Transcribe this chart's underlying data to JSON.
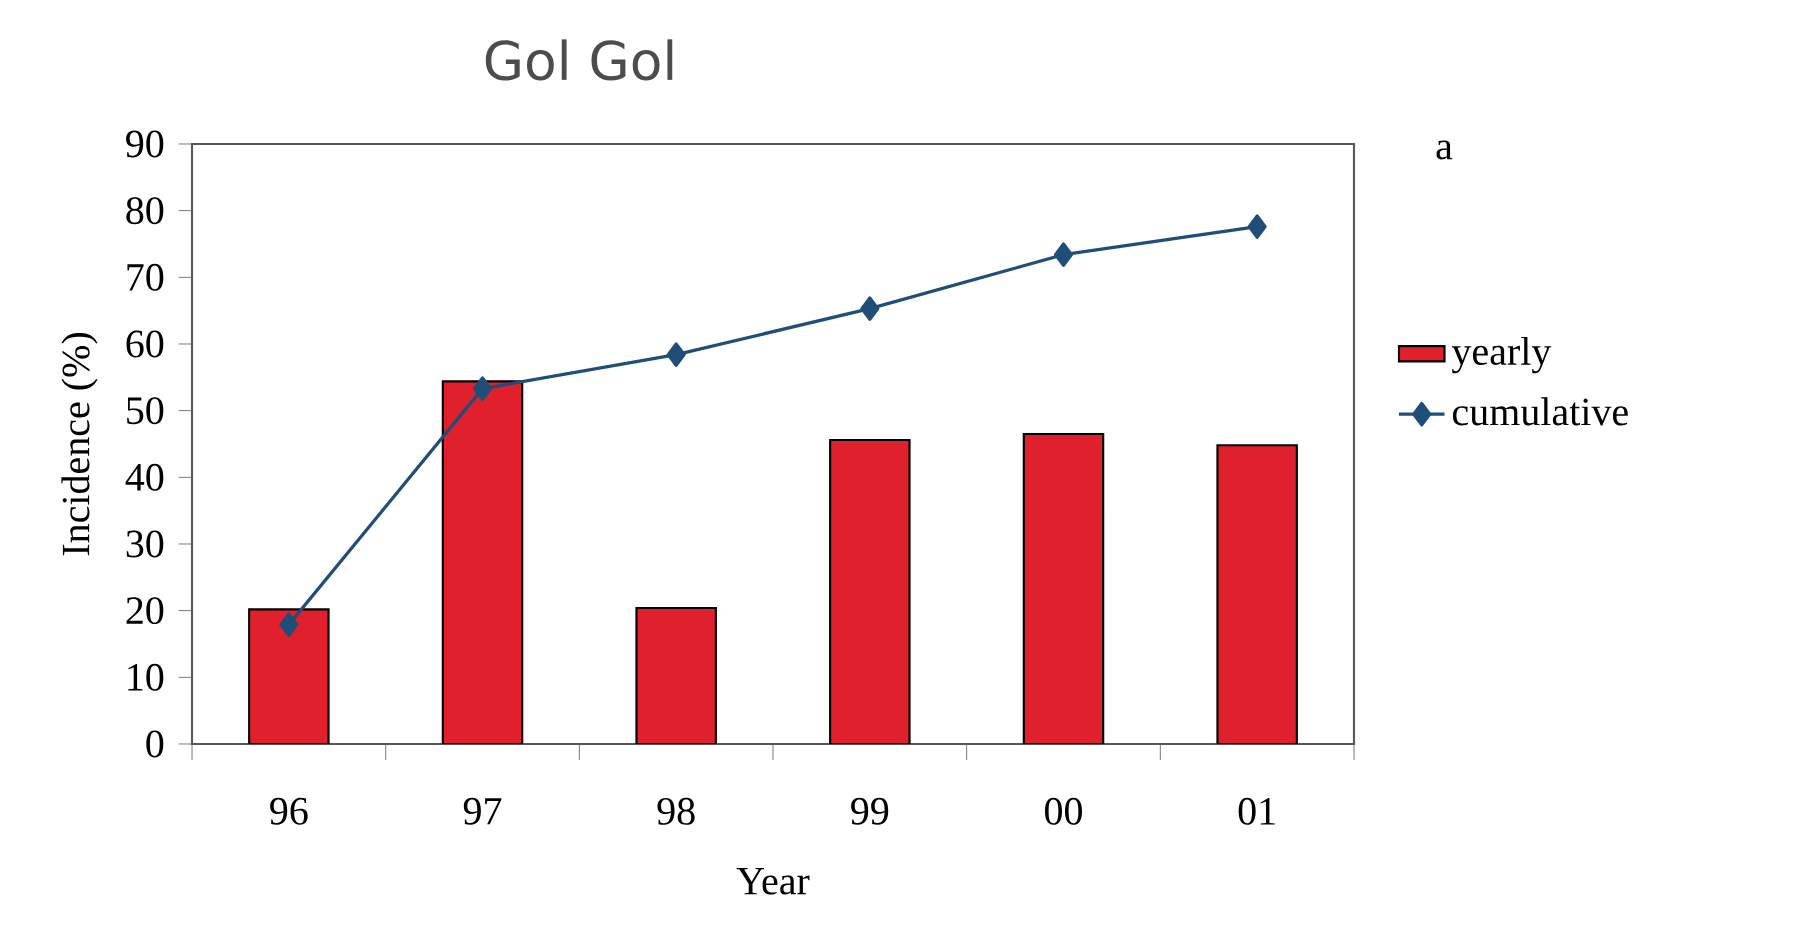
{
  "chart_data": {
    "type": "bar",
    "title": "Gol Gol",
    "xlabel": "Year",
    "ylabel": "Incidence (%)",
    "annotations": [
      "a"
    ],
    "categories": [
      "96",
      "97",
      "98",
      "99",
      "00",
      "01"
    ],
    "series": [
      {
        "name": "yearly",
        "color": "#e0202c",
        "values": [
          20.2,
          54.4,
          20.4,
          45.6,
          46.5,
          44.8
        ]
      },
      {
        "name": "cumulative",
        "type": "line",
        "color": "#1f4e79",
        "marker": "diamond",
        "values": [
          17.9,
          53.3,
          58.4,
          65.3,
          73.4,
          77.6
        ]
      }
    ],
    "ylim": [
      0,
      90
    ],
    "yticks": [
      0,
      10,
      20,
      30,
      40,
      50,
      60,
      70,
      80,
      90
    ],
    "legend": "right",
    "grid": false
  }
}
